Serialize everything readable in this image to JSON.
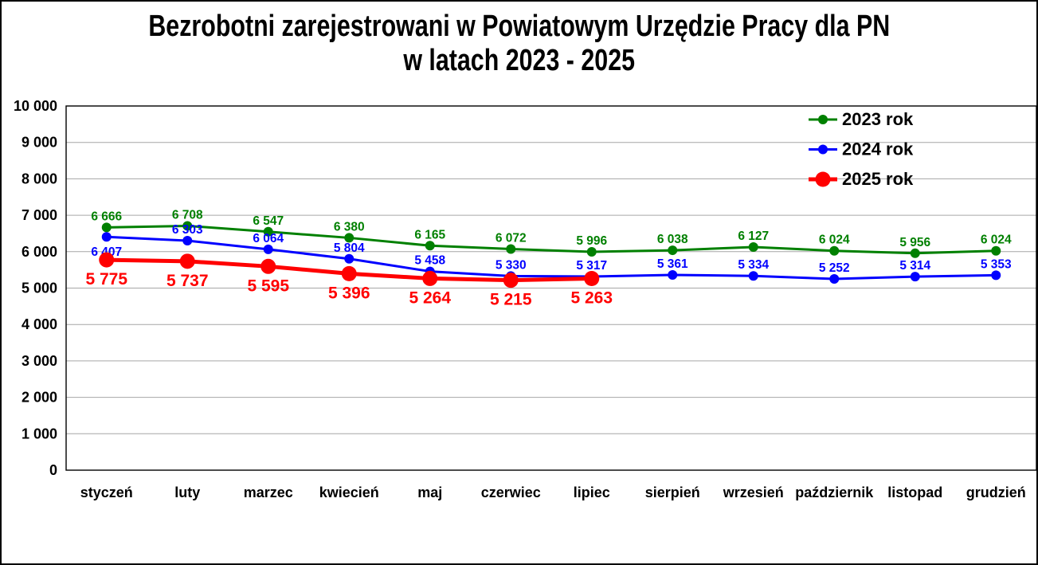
{
  "title": {
    "line1": "Bezrobotni zarejestrowani w Powiatowym Urzędzie Pracy dla PN",
    "line2": "w latach 2023 - 2025"
  },
  "chart_data": {
    "type": "line",
    "categories": [
      "styczeń",
      "luty",
      "marzec",
      "kwiecień",
      "maj",
      "czerwiec",
      "lipiec",
      "sierpień",
      "wrzesień",
      "październik",
      "listopad",
      "grudzień"
    ],
    "series": [
      {
        "name": "2023 rok",
        "color": "#008000",
        "values": [
          6666,
          6708,
          6547,
          6380,
          6165,
          6072,
          5996,
          6038,
          6127,
          6024,
          5956,
          6024
        ],
        "label_position": "above",
        "emphasized": false
      },
      {
        "name": "2024 rok",
        "color": "#0000FF",
        "values": [
          6407,
          6303,
          6064,
          5804,
          5458,
          5330,
          5317,
          5361,
          5334,
          5252,
          5314,
          5353
        ],
        "label_position": "above",
        "label_position_overrides": {
          "0": "below"
        },
        "emphasized": false
      },
      {
        "name": "2025 rok",
        "color": "#FF0000",
        "values": [
          5775,
          5737,
          5595,
          5396,
          5264,
          5215,
          5263,
          null,
          null,
          null,
          null,
          null
        ],
        "label_position": "below",
        "emphasized": true
      }
    ],
    "xlabel": "",
    "ylabel": "",
    "ylim": [
      0,
      10000
    ],
    "ytick_step": 1000,
    "ytick_labels": [
      "0",
      "1 000",
      "2 000",
      "3 000",
      "4 000",
      "5 000",
      "6 000",
      "7 000",
      "8 000",
      "9 000",
      "10 000"
    ],
    "grid": true,
    "gridline_color": "#A6A6A6",
    "axis_color": "#000000",
    "legend_position": "top-right",
    "number_format": "space-grouped"
  }
}
